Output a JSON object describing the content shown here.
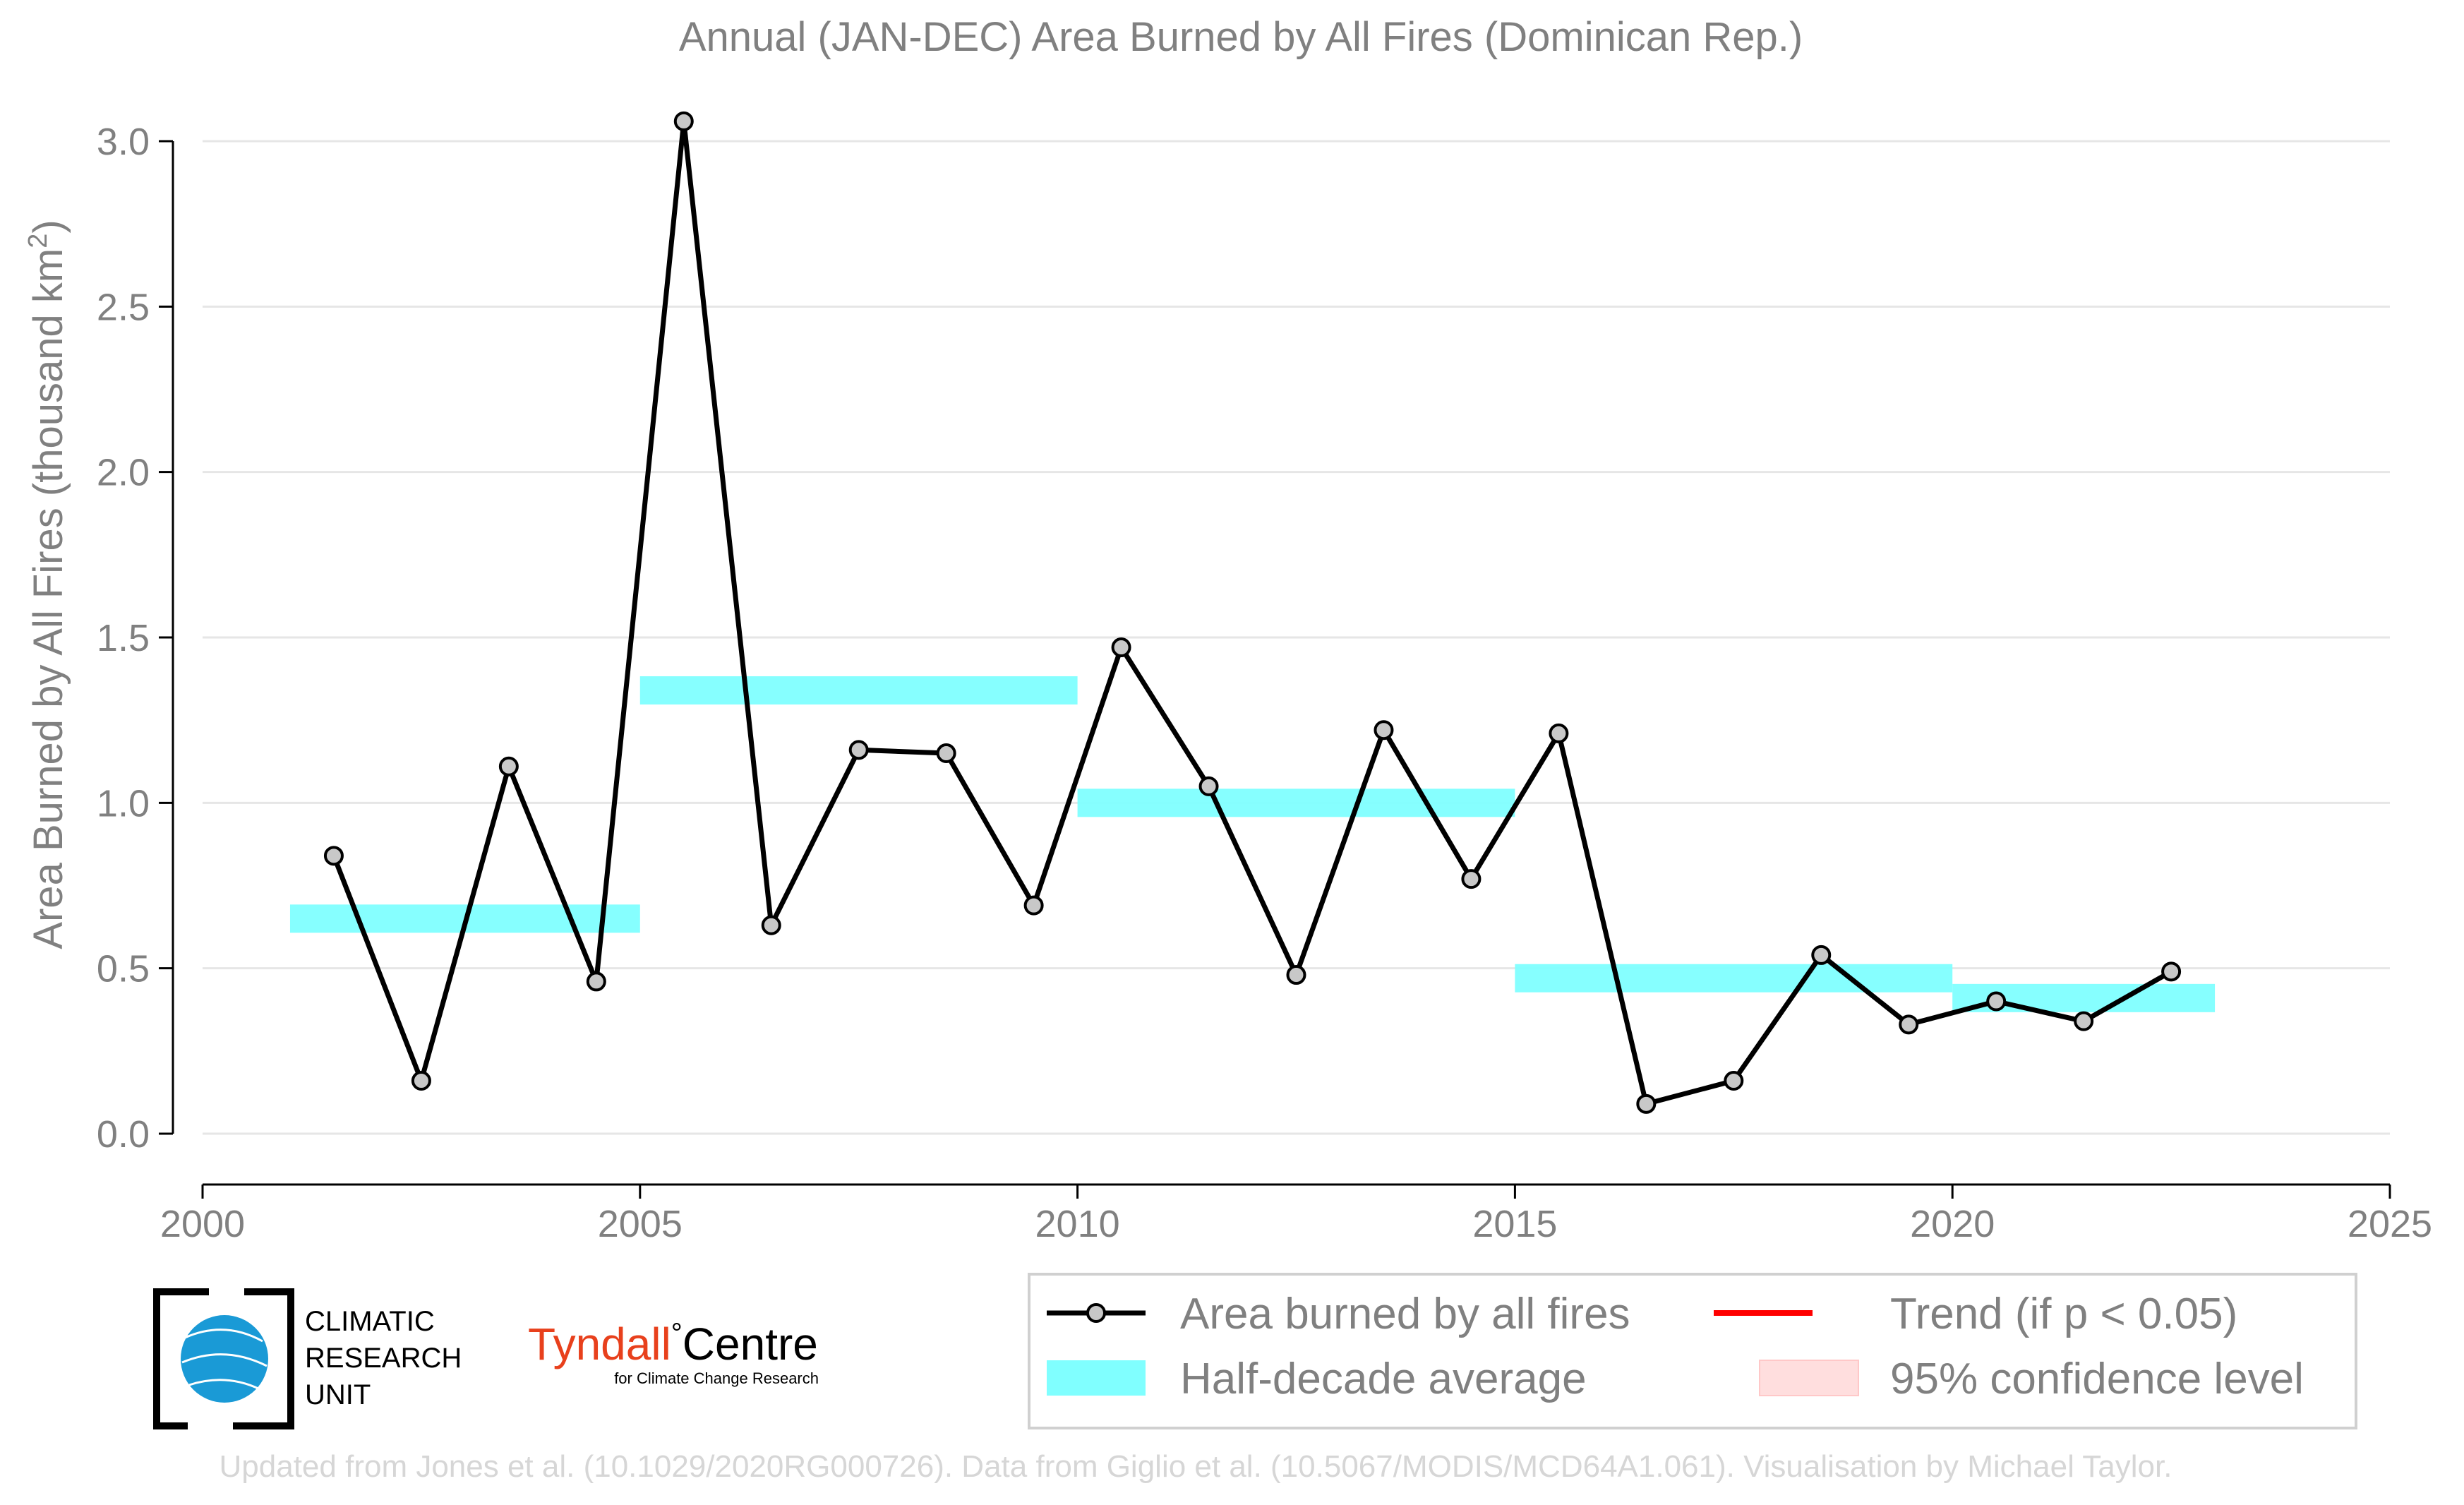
{
  "chart_data": {
    "type": "line",
    "title": "Annual (JAN-DEC) Area Burned by All Fires (Dominican Rep.)",
    "xlabel": "",
    "ylabel": "Area Burned by All Fires (thousand km",
    "ylabel_sup": "2",
    "ylabel_end": ")",
    "xlim": [
      2000,
      2025
    ],
    "ylim": [
      0.0,
      3.0
    ],
    "xticks": [
      2000,
      2005,
      2010,
      2015,
      2020,
      2025
    ],
    "yticks": [
      0.0,
      0.5,
      1.0,
      1.5,
      2.0,
      2.5,
      3.0
    ],
    "ytick_labels": [
      "0.0",
      "0.5",
      "1.0",
      "1.5",
      "2.0",
      "2.5",
      "3.0"
    ],
    "grid": "horizontal",
    "series": [
      {
        "name": "Area burned by all fires",
        "color": "#000000",
        "marker_color": "#c8c8c8",
        "x": [
          2001.5,
          2002.5,
          2003.5,
          2004.5,
          2005.5,
          2006.5,
          2007.5,
          2008.5,
          2009.5,
          2010.5,
          2011.5,
          2012.5,
          2013.5,
          2014.5,
          2015.5,
          2016.5,
          2017.5,
          2018.5,
          2019.5,
          2020.5,
          2021.5,
          2022.5
        ],
        "y": [
          0.84,
          0.16,
          1.11,
          0.46,
          3.06,
          0.63,
          1.16,
          1.15,
          0.69,
          1.47,
          1.05,
          0.48,
          1.22,
          0.77,
          1.21,
          0.09,
          0.16,
          0.54,
          0.33,
          0.4,
          0.34,
          0.49
        ]
      }
    ],
    "half_decade_averages": {
      "name": "Half-decade average",
      "color": "#80ffff",
      "segments": [
        {
          "x0": 2001,
          "x1": 2005,
          "y": 0.65
        },
        {
          "x0": 2005,
          "x1": 2010,
          "y": 1.34
        },
        {
          "x0": 2010,
          "x1": 2015,
          "y": 1.0
        },
        {
          "x0": 2015,
          "x1": 2020,
          "y": 0.47
        },
        {
          "x0": 2020,
          "x1": 2023,
          "y": 0.41
        }
      ]
    },
    "legend": {
      "placement": "bottom-right",
      "entries": [
        {
          "label": "Area burned by all fires",
          "kind": "line-marker",
          "color": "#000000"
        },
        {
          "label": "Trend (if p < 0.05)",
          "kind": "line",
          "color": "#ff0000"
        },
        {
          "label": "Half-decade average",
          "kind": "band",
          "color": "#80ffff"
        },
        {
          "label": "95% confidence level",
          "kind": "band",
          "color": "#ffdede"
        }
      ]
    }
  },
  "logos": {
    "cru_line1": "CLIMATIC",
    "cru_line2": "RESEARCH",
    "cru_line3": "UNIT",
    "tyndall_word1": "Tyndall",
    "tyndall_degree": "°",
    "tyndall_word2": "Centre",
    "tyndall_sub": "for Climate Change Research"
  },
  "credit": "Updated from Jones et al. (10.1029/2020RG000726). Data from Giglio et al. (10.5067/MODIS/MCD64A1.061). Visualisation by Michael Taylor."
}
